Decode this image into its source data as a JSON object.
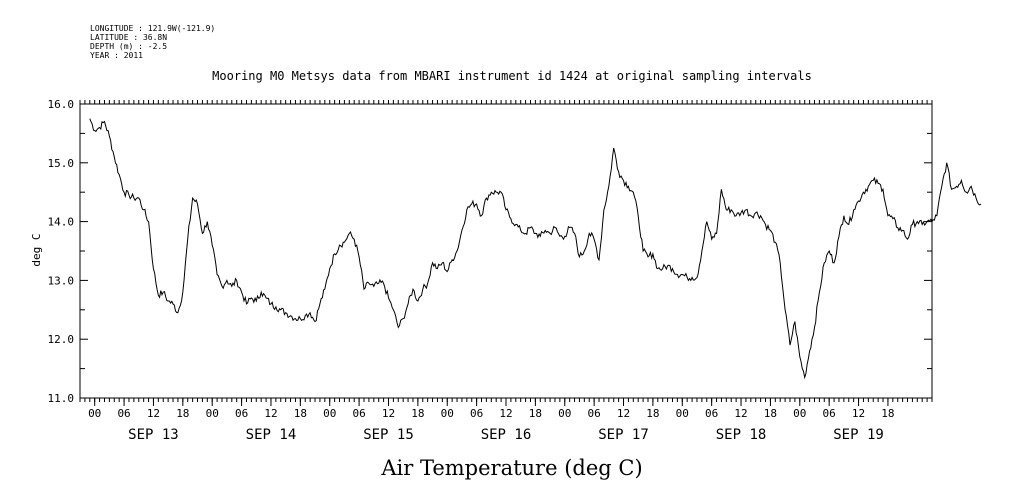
{
  "header": {
    "longitude": "LONGITUDE : 121.9W(-121.9)",
    "latitude": "LATITUDE : 36.8N",
    "depth": "DEPTH (m) : -2.5",
    "year": "YEAR : 2011"
  },
  "chart_data": {
    "type": "line",
    "title": "Mooring M0 Metsys data from MBARI instrument id 1424 at original sampling intervals",
    "xlabel": "Air Temperature (deg C)",
    "ylabel": "deg C",
    "ylim": [
      11.0,
      16.0
    ],
    "y_ticks": [
      "11.0",
      "12.0",
      "13.0",
      "14.0",
      "15.0",
      "16.0"
    ],
    "x_unit": "hours since SEP 13 00:00",
    "xlim": [
      -1,
      167
    ],
    "x_hour_ticks": [
      "00",
      "06",
      "12",
      "18",
      "00",
      "06",
      "12",
      "18",
      "00",
      "06",
      "12",
      "18",
      "00",
      "06",
      "12",
      "18",
      "00",
      "06",
      "12",
      "18",
      "00",
      "06",
      "12",
      "18",
      "00",
      "06",
      "12",
      "18"
    ],
    "day_labels": [
      "SEP 13",
      "SEP 14",
      "SEP 15",
      "SEP 16",
      "SEP 17",
      "SEP 18",
      "SEP 19"
    ],
    "grid": false,
    "legend": "none",
    "series": [
      {
        "color": "#000000",
        "points": [
          [
            -1,
            15.75
          ],
          [
            0,
            15.55
          ],
          [
            1,
            15.6
          ],
          [
            2,
            15.7
          ],
          [
            3,
            15.45
          ],
          [
            4,
            15.1
          ],
          [
            5,
            14.8
          ],
          [
            6,
            14.5
          ],
          [
            7,
            14.45
          ],
          [
            8,
            14.4
          ],
          [
            9,
            14.4
          ],
          [
            10,
            14.2
          ],
          [
            11,
            14.0
          ],
          [
            12,
            13.2
          ],
          [
            13,
            12.75
          ],
          [
            14,
            12.8
          ],
          [
            15,
            12.65
          ],
          [
            16,
            12.6
          ],
          [
            17,
            12.45
          ],
          [
            18,
            12.8
          ],
          [
            19,
            13.7
          ],
          [
            20,
            14.4
          ],
          [
            21,
            14.3
          ],
          [
            22,
            13.8
          ],
          [
            23,
            14.0
          ],
          [
            24,
            13.6
          ],
          [
            25,
            13.1
          ],
          [
            26,
            12.9
          ],
          [
            27,
            13.0
          ],
          [
            28,
            12.9
          ],
          [
            29,
            13.0
          ],
          [
            30,
            12.8
          ],
          [
            31,
            12.6
          ],
          [
            32,
            12.7
          ],
          [
            33,
            12.65
          ],
          [
            34,
            12.8
          ],
          [
            35,
            12.7
          ],
          [
            36,
            12.6
          ],
          [
            37,
            12.55
          ],
          [
            38,
            12.5
          ],
          [
            39,
            12.45
          ],
          [
            40,
            12.4
          ],
          [
            41,
            12.35
          ],
          [
            42,
            12.35
          ],
          [
            43,
            12.4
          ],
          [
            44,
            12.45
          ],
          [
            45,
            12.3
          ],
          [
            46,
            12.6
          ],
          [
            47,
            12.85
          ],
          [
            48,
            13.2
          ],
          [
            49,
            13.45
          ],
          [
            50,
            13.6
          ],
          [
            51,
            13.65
          ],
          [
            52,
            13.8
          ],
          [
            53,
            13.7
          ],
          [
            54,
            13.4
          ],
          [
            55,
            12.85
          ],
          [
            56,
            12.95
          ],
          [
            57,
            12.9
          ],
          [
            58,
            12.95
          ],
          [
            59,
            12.95
          ],
          [
            60,
            12.7
          ],
          [
            61,
            12.5
          ],
          [
            62,
            12.2
          ],
          [
            63,
            12.35
          ],
          [
            64,
            12.6
          ],
          [
            65,
            12.85
          ],
          [
            66,
            12.65
          ],
          [
            67,
            12.85
          ],
          [
            68,
            12.95
          ],
          [
            69,
            13.3
          ],
          [
            70,
            13.2
          ],
          [
            71,
            13.3
          ],
          [
            72,
            13.15
          ],
          [
            73,
            13.35
          ],
          [
            74,
            13.5
          ],
          [
            75,
            13.85
          ],
          [
            76,
            14.2
          ],
          [
            77,
            14.3
          ],
          [
            78,
            14.3
          ],
          [
            79,
            14.1
          ],
          [
            80,
            14.4
          ],
          [
            81,
            14.5
          ],
          [
            82,
            14.5
          ],
          [
            83,
            14.5
          ],
          [
            84,
            14.2
          ],
          [
            85,
            14.05
          ],
          [
            86,
            13.95
          ],
          [
            87,
            13.85
          ],
          [
            88,
            13.8
          ],
          [
            89,
            13.9
          ],
          [
            90,
            13.8
          ],
          [
            91,
            13.75
          ],
          [
            92,
            13.85
          ],
          [
            93,
            13.8
          ],
          [
            94,
            13.9
          ],
          [
            95,
            13.75
          ],
          [
            96,
            13.75
          ],
          [
            97,
            13.9
          ],
          [
            98,
            13.8
          ],
          [
            99,
            13.4
          ],
          [
            100,
            13.5
          ],
          [
            101,
            13.8
          ],
          [
            102,
            13.7
          ],
          [
            103,
            13.35
          ],
          [
            104,
            14.2
          ],
          [
            105,
            14.6
          ],
          [
            106,
            15.25
          ],
          [
            107,
            14.85
          ],
          [
            108,
            14.7
          ],
          [
            109,
            14.6
          ],
          [
            110,
            14.5
          ],
          [
            111,
            14.1
          ],
          [
            112,
            13.5
          ],
          [
            113,
            13.4
          ],
          [
            114,
            13.45
          ],
          [
            115,
            13.2
          ],
          [
            116,
            13.2
          ],
          [
            117,
            13.25
          ],
          [
            118,
            13.2
          ],
          [
            119,
            13.1
          ],
          [
            120,
            13.1
          ],
          [
            121,
            13.05
          ],
          [
            122,
            13.05
          ],
          [
            123,
            13.05
          ],
          [
            124,
            13.5
          ],
          [
            125,
            14.0
          ],
          [
            126,
            13.7
          ],
          [
            127,
            13.8
          ],
          [
            128,
            14.55
          ],
          [
            129,
            14.2
          ],
          [
            130,
            14.2
          ],
          [
            131,
            14.1
          ],
          [
            132,
            14.15
          ],
          [
            133,
            14.2
          ],
          [
            134,
            14.1
          ],
          [
            135,
            14.15
          ],
          [
            136,
            14.1
          ],
          [
            137,
            13.95
          ],
          [
            138,
            13.85
          ],
          [
            139,
            13.65
          ],
          [
            140,
            13.3
          ],
          [
            141,
            12.5
          ],
          [
            142,
            11.9
          ],
          [
            143,
            12.3
          ],
          [
            144,
            11.7
          ],
          [
            145,
            11.35
          ],
          [
            146,
            11.8
          ],
          [
            147,
            12.2
          ],
          [
            148,
            12.8
          ],
          [
            149,
            13.3
          ],
          [
            150,
            13.5
          ],
          [
            151,
            13.3
          ],
          [
            152,
            13.75
          ],
          [
            153,
            14.1
          ],
          [
            154,
            13.95
          ],
          [
            155,
            14.2
          ],
          [
            156,
            14.35
          ],
          [
            157,
            14.5
          ],
          [
            158,
            14.6
          ],
          [
            159,
            14.7
          ],
          [
            160,
            14.65
          ],
          [
            161,
            14.55
          ],
          [
            162,
            14.1
          ],
          [
            163,
            14.05
          ],
          [
            164,
            13.9
          ],
          [
            165,
            13.85
          ],
          [
            166,
            13.7
          ]
        ]
      }
    ],
    "series_tail": [
      [
        166,
        13.7
      ],
      [
        167,
        13.95
      ],
      [
        168,
        14.0
      ],
      [
        169,
        13.95
      ],
      [
        170,
        14.0
      ],
      [
        171,
        14.0
      ],
      [
        172,
        14.1
      ],
      [
        173,
        14.6
      ],
      [
        174,
        15.0
      ],
      [
        175,
        14.55
      ],
      [
        176,
        14.6
      ],
      [
        177,
        14.7
      ],
      [
        178,
        14.5
      ],
      [
        179,
        14.6
      ],
      [
        180,
        14.4
      ],
      [
        181,
        14.3
      ]
    ]
  }
}
